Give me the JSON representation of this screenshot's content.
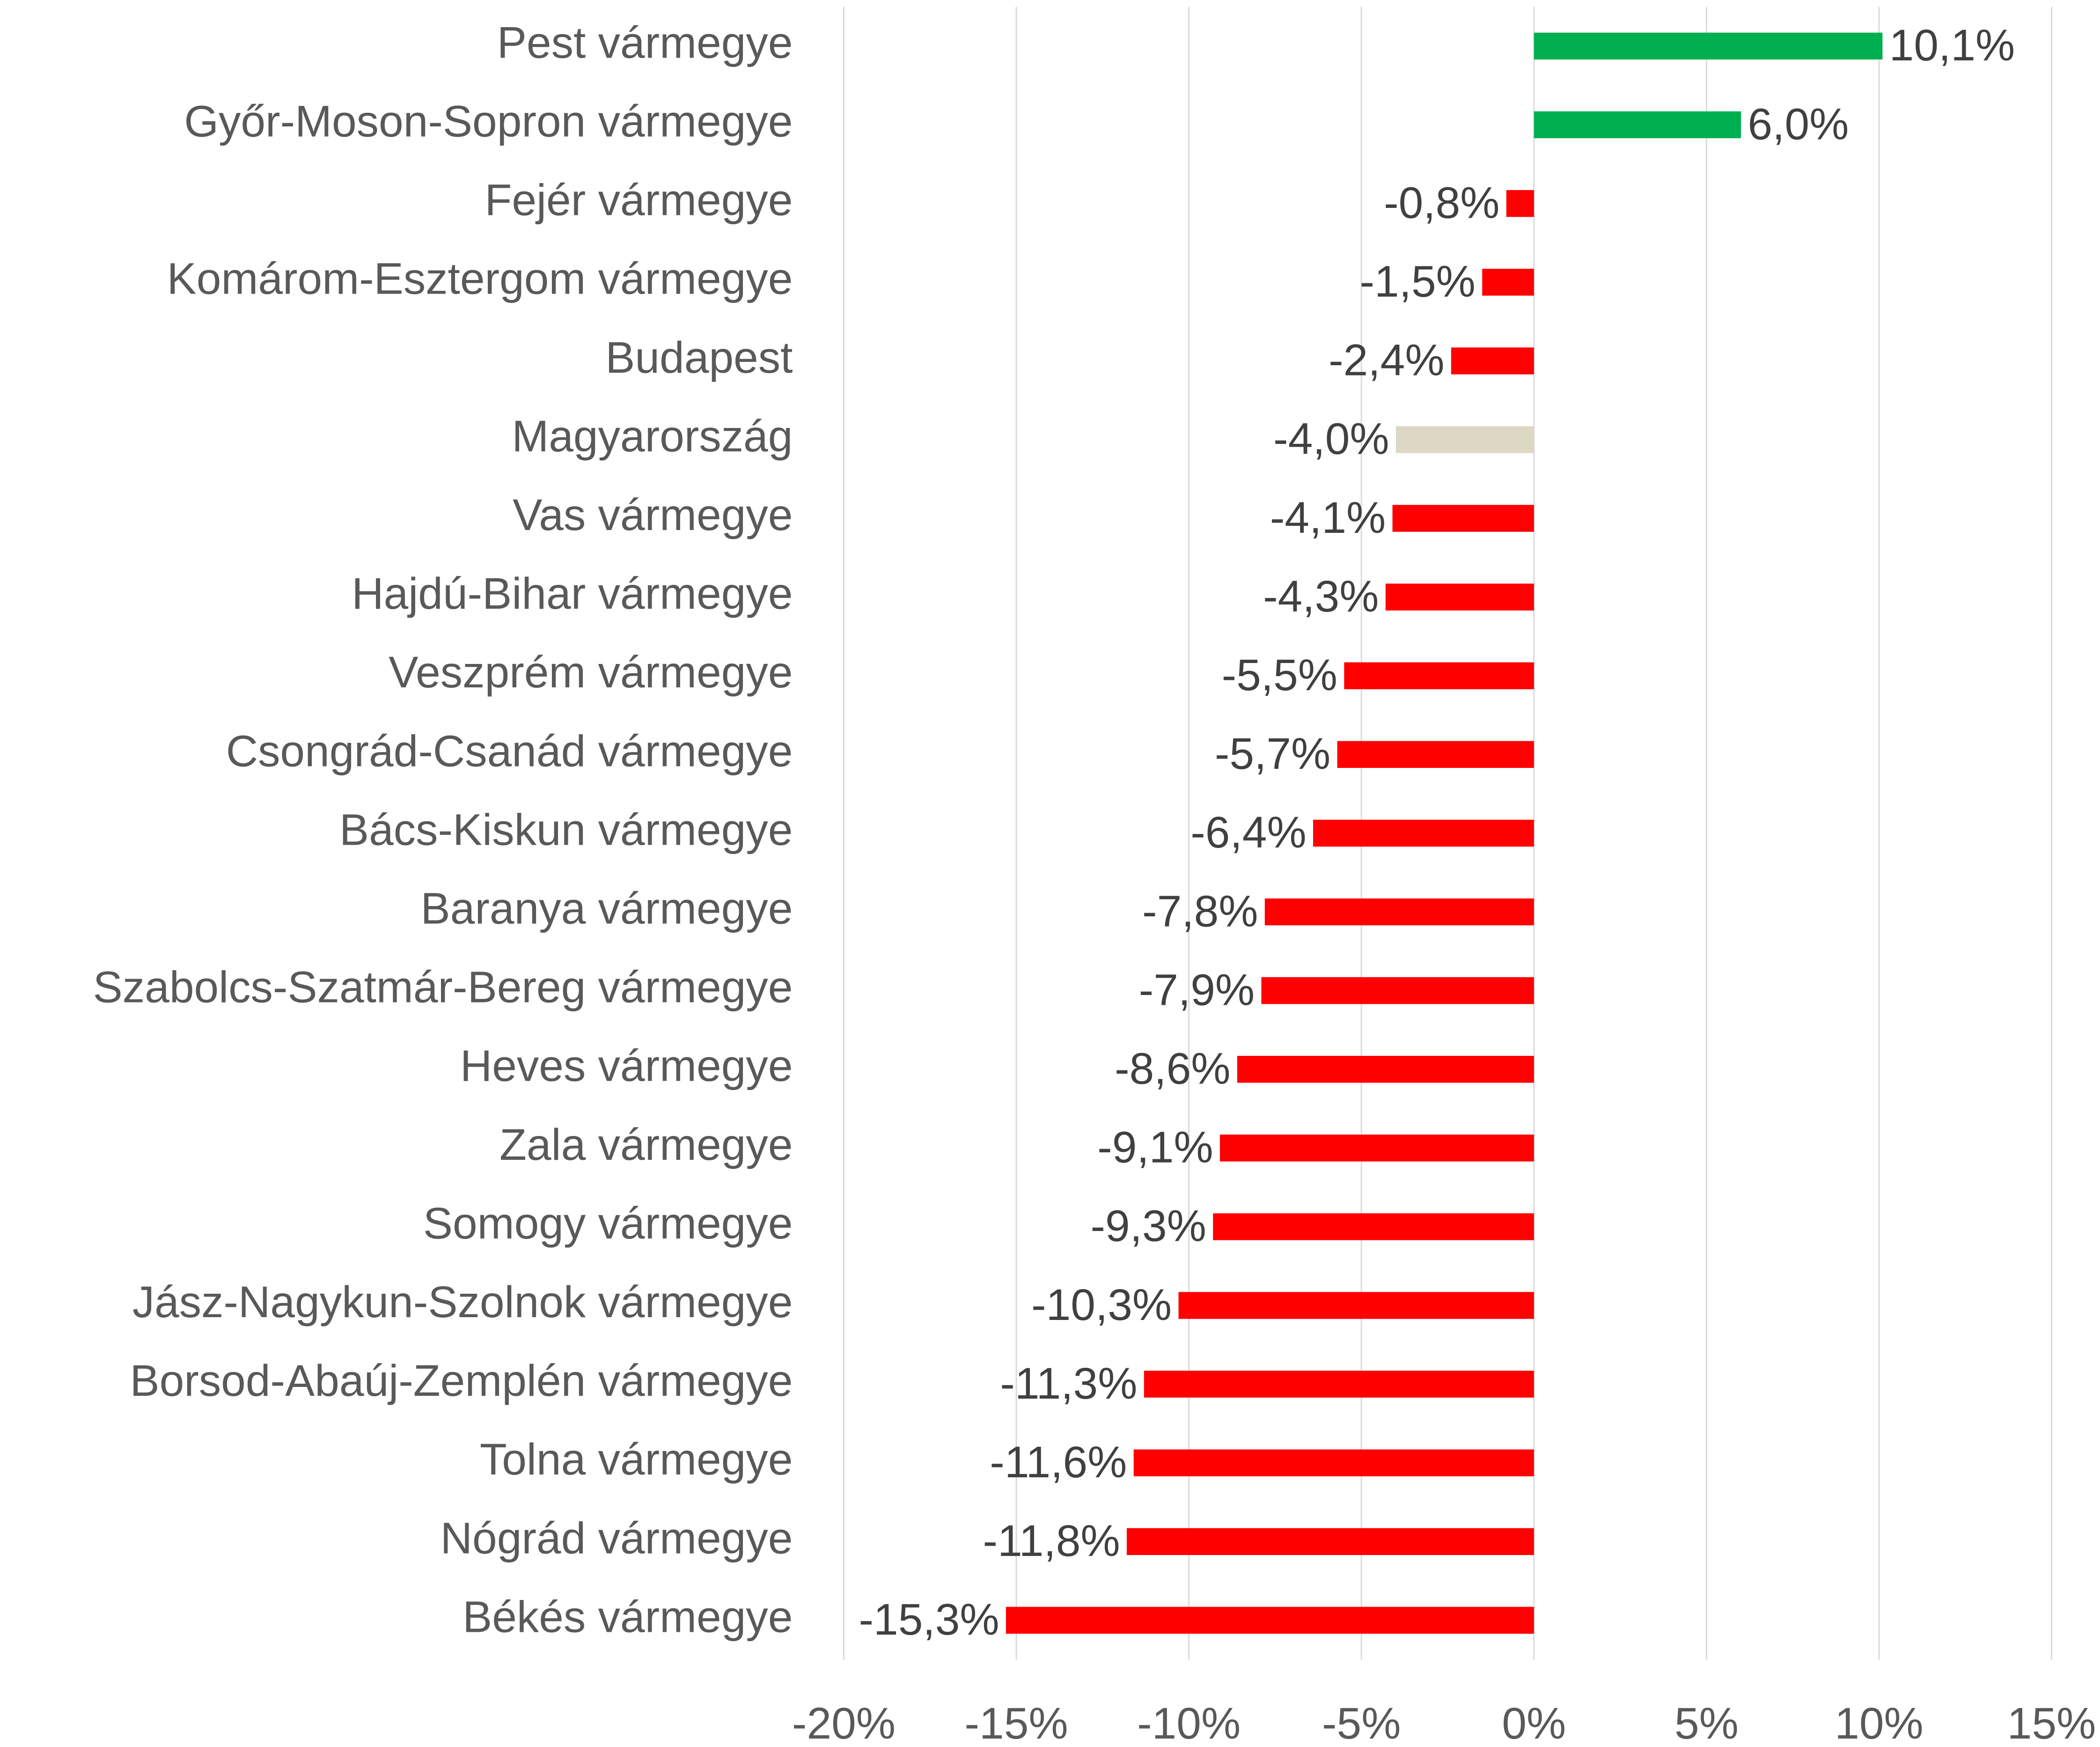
{
  "chart_data": {
    "type": "hbar",
    "categories": [
      "Pest vármegye",
      "Győr-Moson-Sopron vármegye",
      "Fejér vármegye",
      "Komárom-Esztergom vármegye",
      "Budapest",
      "Magyarország",
      "Vas vármegye",
      "Hajdú-Bihar vármegye",
      "Veszprém vármegye",
      "Csongrád-Csanád vármegye",
      "Bács-Kiskun vármegye",
      "Baranya vármegye",
      "Szabolcs-Szatmár-Bereg vármegye",
      "Heves vármegye",
      "Zala vármegye",
      "Somogy vármegye",
      "Jász-Nagykun-Szolnok vármegye",
      "Borsod-Abaúj-Zemplén vármegye",
      "Tolna vármegye",
      "Nógrád vármegye",
      "Békés vármegye"
    ],
    "values": [
      10.1,
      6.0,
      -0.8,
      -1.5,
      -2.4,
      -4.0,
      -4.1,
      -4.3,
      -5.5,
      -5.7,
      -6.4,
      -7.8,
      -7.9,
      -8.6,
      -9.1,
      -9.3,
      -10.3,
      -11.3,
      -11.6,
      -11.8,
      -15.3
    ],
    "value_labels": [
      "10,1%",
      "6,0%",
      "-0,8%",
      "-1,5%",
      "-2,4%",
      "-4,0%",
      "-4,1%",
      "-4,3%",
      "-5,5%",
      "-5,7%",
      "-6,4%",
      "-7,8%",
      "-7,9%",
      "-8,6%",
      "-9,1%",
      "-9,3%",
      "-10,3%",
      "-11,3%",
      "-11,6%",
      "-11,8%",
      "-15,3%"
    ],
    "colors": [
      "#00b050",
      "#00b050",
      "#ff0000",
      "#ff0000",
      "#ff0000",
      "#ddd8c4",
      "#ff0000",
      "#ff0000",
      "#ff0000",
      "#ff0000",
      "#ff0000",
      "#ff0000",
      "#ff0000",
      "#ff0000",
      "#ff0000",
      "#ff0000",
      "#ff0000",
      "#ff0000",
      "#ff0000",
      "#ff0000",
      "#ff0000"
    ],
    "xlim": [
      -20,
      15
    ],
    "xticks": [
      {
        "value": -20,
        "label": "-20%"
      },
      {
        "value": -15,
        "label": "-15%"
      },
      {
        "value": -10,
        "label": "-10%"
      },
      {
        "value": -5,
        "label": "-5%"
      },
      {
        "value": 0,
        "label": "0%"
      },
      {
        "value": 5,
        "label": "5%"
      },
      {
        "value": 10,
        "label": "10%"
      },
      {
        "value": 15,
        "label": "15%"
      }
    ],
    "grid": true
  }
}
